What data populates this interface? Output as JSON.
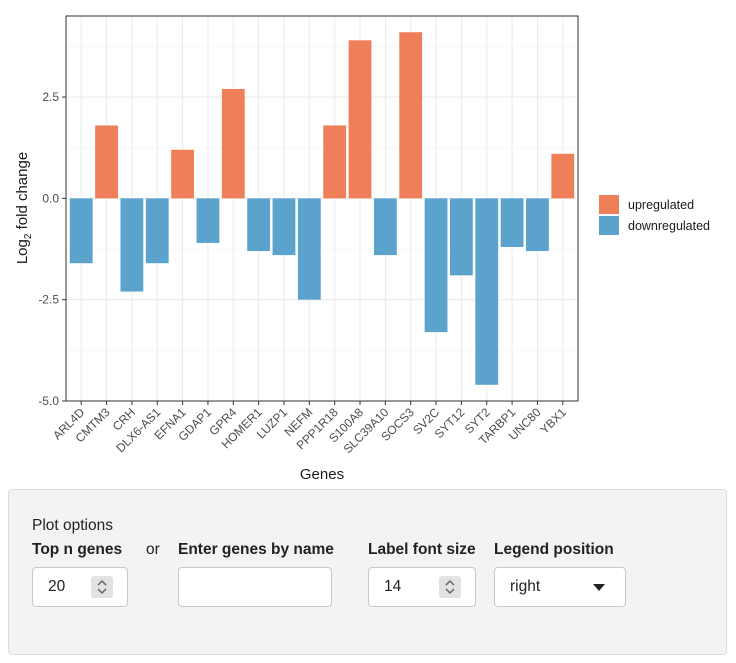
{
  "chart_data": {
    "type": "bar",
    "xlabel": "Genes",
    "ylabel": "Log",
    "ylabel_sub": "2",
    "ylabel_rest": " fold change",
    "ylim": [
      -5,
      4.5
    ],
    "yticks": [
      -5,
      -2.5,
      0,
      2.5
    ],
    "ytick_labels": [
      "-5.0",
      "-2.5",
      "0.0",
      "2.5"
    ],
    "grid": true,
    "legend_position": "right",
    "legend": [
      {
        "key": "up",
        "label": "upregulated",
        "color": "#EF7F58"
      },
      {
        "key": "down",
        "label": "downregulated",
        "color": "#5BA3CC"
      }
    ],
    "categories": [
      "ARL4D",
      "CMTM3",
      "CRH",
      "DLX6-AS1",
      "EFNA1",
      "GDAP1",
      "GPR4",
      "HOMER1",
      "LUZP1",
      "NEFM",
      "PPP1R18",
      "S100A8",
      "SLC39A10",
      "SOCS3",
      "SV2C",
      "SYT12",
      "SYT2",
      "TARBP1",
      "UNC80",
      "YBX1"
    ],
    "values": [
      -1.6,
      1.8,
      -2.3,
      -1.6,
      1.2,
      -1.1,
      2.7,
      -1.3,
      -1.4,
      -2.5,
      1.8,
      3.9,
      -1.4,
      4.1,
      -3.3,
      -1.9,
      -4.6,
      -1.2,
      -1.3,
      1.1
    ]
  },
  "plot_options": {
    "title": "Plot options",
    "top_n_label": "Top n genes",
    "top_n_value": "20",
    "or_text": "or",
    "genes_label": "Enter genes by name",
    "genes_value": "",
    "font_size_label": "Label font size",
    "font_size_value": "14",
    "legend_label": "Legend position",
    "legend_value": "right"
  }
}
